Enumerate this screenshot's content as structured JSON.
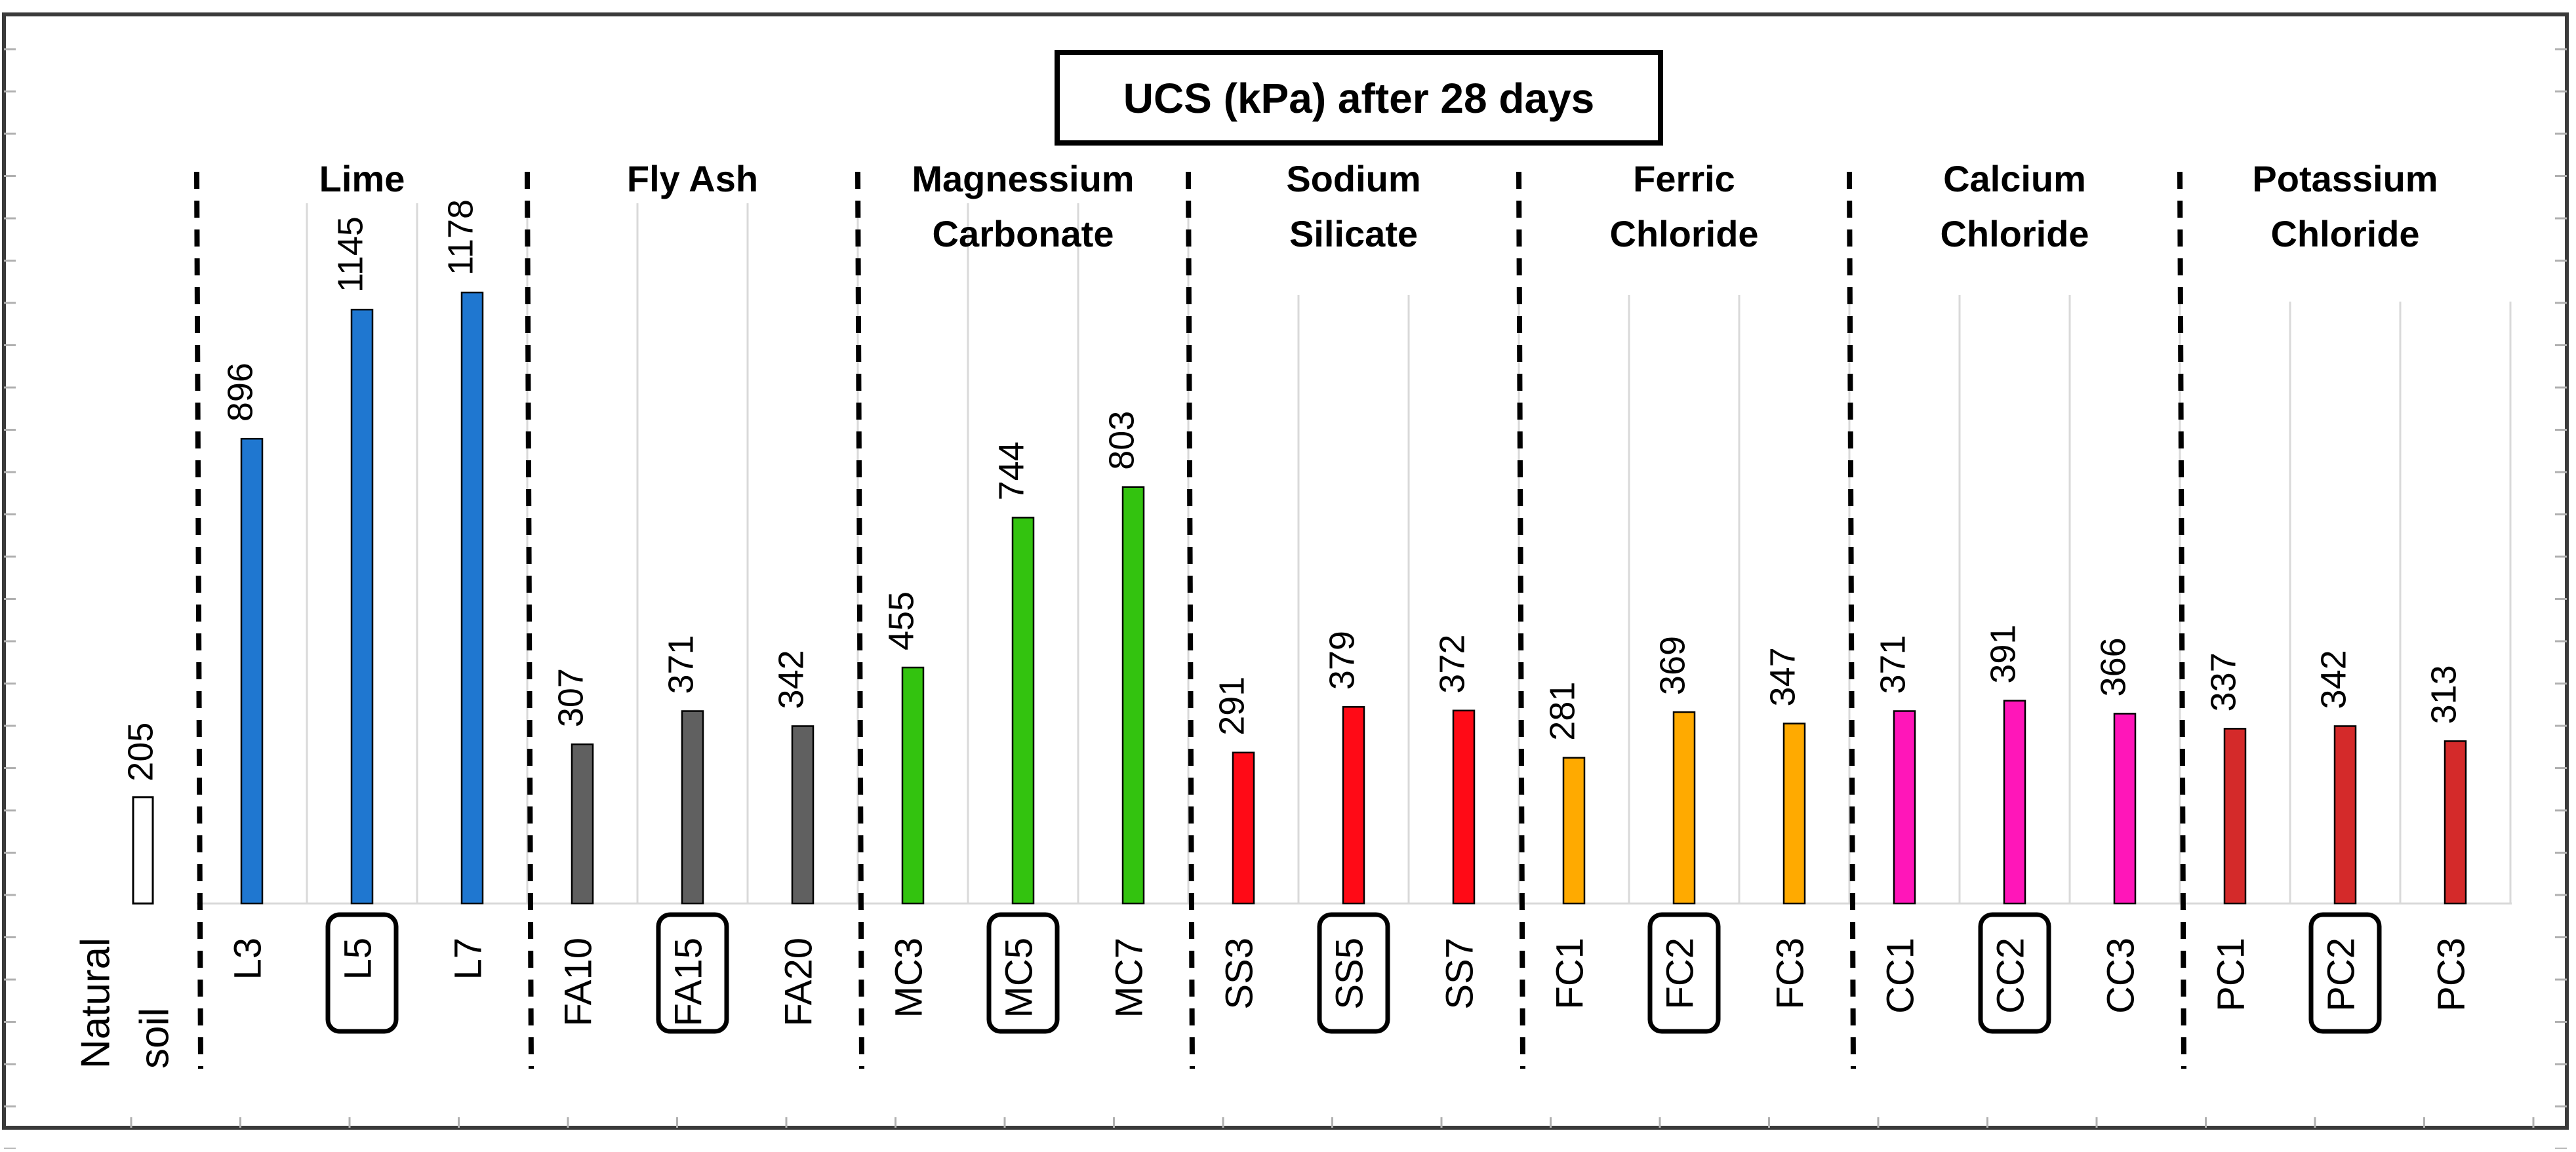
{
  "chart_data": {
    "type": "bar",
    "title": "UCS (kPa) after 28 days",
    "xlabel": "",
    "ylabel": "",
    "ylim": [
      0,
      1350
    ],
    "grid": "vertical",
    "categories": [
      "Natural soil",
      "L3",
      "L5",
      "L7",
      "FA10",
      "FA15",
      "FA20",
      "MC3",
      "MC5",
      "MC7",
      "SS3",
      "SS5",
      "SS7",
      "FC1",
      "FC2",
      "FC3",
      "CC1",
      "CC2",
      "CC3",
      "PC1",
      "PC2",
      "PC3"
    ],
    "values": [
      205,
      896,
      1145,
      1178,
      307,
      371,
      342,
      455,
      744,
      803,
      291,
      379,
      372,
      281,
      369,
      347,
      371,
      391,
      366,
      337,
      342,
      313
    ],
    "natural": {
      "label_lines": [
        "Natural",
        "soil"
      ],
      "value": 205,
      "color": "#ffffff"
    },
    "groups": [
      {
        "name_lines": [
          "Lime"
        ],
        "color": "#1f77d0",
        "categories": [
          "L3",
          "L5",
          "L7"
        ],
        "values": [
          896,
          1145,
          1178
        ],
        "highlighted": "L5"
      },
      {
        "name_lines": [
          "Fly Ash"
        ],
        "color": "#606060",
        "categories": [
          "FA10",
          "FA15",
          "FA20"
        ],
        "values": [
          307,
          371,
          342
        ],
        "highlighted": "FA15"
      },
      {
        "name_lines": [
          "Magnessium",
          "Carbonate"
        ],
        "color": "#33c30f",
        "categories": [
          "MC3",
          "MC5",
          "MC7"
        ],
        "values": [
          455,
          744,
          803
        ],
        "highlighted": "MC5"
      },
      {
        "name_lines": [
          "Sodium",
          "Silicate"
        ],
        "color": "#ff0a16",
        "categories": [
          "SS3",
          "SS5",
          "SS7"
        ],
        "values": [
          291,
          379,
          372
        ],
        "highlighted": "SS5"
      },
      {
        "name_lines": [
          "Ferric",
          "Chloride"
        ],
        "color": "#ffaa00",
        "categories": [
          "FC1",
          "FC2",
          "FC3"
        ],
        "values": [
          281,
          369,
          347
        ],
        "highlighted": "FC2"
      },
      {
        "name_lines": [
          "Calcium",
          "Chloride"
        ],
        "color": "#ff16b9",
        "categories": [
          "CC1",
          "CC2",
          "CC3"
        ],
        "values": [
          371,
          391,
          366
        ],
        "highlighted": "CC2"
      },
      {
        "name_lines": [
          "Potassium",
          "Chloride"
        ],
        "color": "#d42a2a",
        "categories": [
          "PC1",
          "PC2",
          "PC3"
        ],
        "values": [
          337,
          342,
          313
        ],
        "highlighted": "PC2"
      }
    ]
  }
}
